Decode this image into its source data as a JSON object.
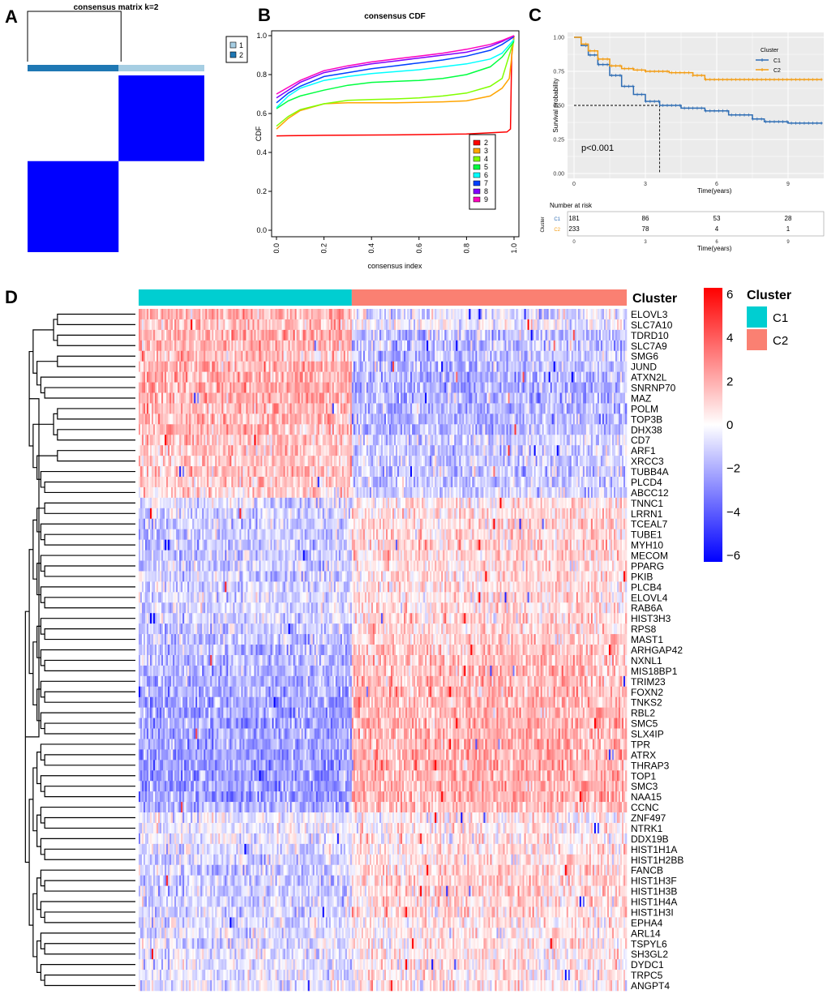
{
  "panel_letters": {
    "a": "A",
    "b": "B",
    "c": "C",
    "d": "D"
  },
  "chart_data": [
    {
      "panel": "A",
      "type": "heatmap",
      "title": "consensus matrix k=2",
      "legend": {
        "entries": [
          "1",
          "2"
        ],
        "colors": [
          "#a6cee3",
          "#1f78b4"
        ]
      },
      "cluster_fractions": [
        0.515,
        0.485
      ],
      "matrix": [
        [
          1,
          0
        ],
        [
          0,
          1
        ]
      ],
      "cell_color": "#0000ff",
      "background_color": "#ffffff"
    },
    {
      "panel": "B",
      "type": "line",
      "title": "consensus CDF",
      "xlabel": "consensus index",
      "ylabel": "CDF",
      "xlim": [
        0,
        1
      ],
      "ylim": [
        0,
        1
      ],
      "xticks": [
        "0.0",
        "0.2",
        "0.4",
        "0.6",
        "0.8",
        "1.0"
      ],
      "yticks": [
        "0.0",
        "0.2",
        "0.4",
        "0.6",
        "0.8",
        "1.0"
      ],
      "legend_position": "bottom-right",
      "series": [
        {
          "name": "2",
          "color": "#ff0000",
          "x": [
            0,
            0.05,
            0.2,
            0.5,
            0.8,
            0.97,
            0.985,
            0.99,
            1.0
          ],
          "y": [
            0.485,
            0.486,
            0.488,
            0.49,
            0.495,
            0.505,
            0.52,
            0.9,
            1.0
          ]
        },
        {
          "name": "3",
          "color": "#ffa500",
          "x": [
            0,
            0.05,
            0.1,
            0.2,
            0.3,
            0.5,
            0.7,
            0.8,
            0.9,
            0.95,
            0.98,
            1.0
          ],
          "y": [
            0.52,
            0.575,
            0.615,
            0.65,
            0.655,
            0.655,
            0.66,
            0.665,
            0.69,
            0.73,
            0.78,
            1.0
          ]
        },
        {
          "name": "4",
          "color": "#80ff00",
          "x": [
            0,
            0.05,
            0.1,
            0.2,
            0.3,
            0.4,
            0.5,
            0.6,
            0.7,
            0.8,
            0.9,
            0.95,
            1.0
          ],
          "y": [
            0.535,
            0.585,
            0.62,
            0.65,
            0.668,
            0.672,
            0.675,
            0.68,
            0.69,
            0.705,
            0.74,
            0.78,
            0.98
          ]
        },
        {
          "name": "5",
          "color": "#00ff40",
          "x": [
            0,
            0.05,
            0.1,
            0.2,
            0.3,
            0.4,
            0.5,
            0.6,
            0.7,
            0.8,
            0.9,
            0.95,
            1.0
          ],
          "y": [
            0.625,
            0.665,
            0.69,
            0.72,
            0.745,
            0.76,
            0.765,
            0.77,
            0.78,
            0.8,
            0.84,
            0.89,
            0.97
          ]
        },
        {
          "name": "6",
          "color": "#00ffff",
          "x": [
            0,
            0.05,
            0.1,
            0.2,
            0.3,
            0.4,
            0.5,
            0.6,
            0.7,
            0.8,
            0.9,
            0.95,
            1.0
          ],
          "y": [
            0.63,
            0.69,
            0.73,
            0.77,
            0.79,
            0.805,
            0.815,
            0.825,
            0.84,
            0.855,
            0.88,
            0.91,
            0.98
          ]
        },
        {
          "name": "7",
          "color": "#0040ff",
          "x": [
            0,
            0.05,
            0.1,
            0.2,
            0.3,
            0.4,
            0.5,
            0.6,
            0.7,
            0.8,
            0.9,
            0.95,
            1.0
          ],
          "y": [
            0.655,
            0.705,
            0.74,
            0.79,
            0.81,
            0.83,
            0.845,
            0.86,
            0.875,
            0.895,
            0.925,
            0.955,
            0.995
          ]
        },
        {
          "name": "8",
          "color": "#8000ff",
          "x": [
            0,
            0.05,
            0.1,
            0.2,
            0.3,
            0.4,
            0.5,
            0.6,
            0.7,
            0.8,
            0.9,
            0.95,
            1.0
          ],
          "y": [
            0.68,
            0.72,
            0.76,
            0.81,
            0.835,
            0.855,
            0.87,
            0.885,
            0.9,
            0.915,
            0.945,
            0.97,
            1.0
          ]
        },
        {
          "name": "9",
          "color": "#ff00bf",
          "x": [
            0,
            0.05,
            0.1,
            0.2,
            0.3,
            0.4,
            0.5,
            0.6,
            0.7,
            0.8,
            0.9,
            0.95,
            1.0
          ],
          "y": [
            0.7,
            0.735,
            0.77,
            0.82,
            0.845,
            0.865,
            0.88,
            0.895,
            0.91,
            0.93,
            0.955,
            0.975,
            1.0
          ]
        }
      ]
    },
    {
      "panel": "C",
      "type": "line",
      "title": "",
      "xlabel": "Time(years)",
      "ylabel": "Survival probability",
      "xlim": [
        0,
        10.5
      ],
      "ylim": [
        0,
        1
      ],
      "xticks": [
        0,
        3,
        6,
        9
      ],
      "yticks": [
        "0.00",
        "0.25",
        "0.50",
        "0.75",
        "1.00"
      ],
      "annotation": "p<0.001",
      "median_survival_time": 3.6,
      "legend": {
        "title": "Cluster",
        "position": "top-right"
      },
      "series": [
        {
          "name": "C1",
          "color": "#2e6db4",
          "x": [
            0,
            0.3,
            0.6,
            1,
            1.5,
            2,
            2.5,
            3,
            3.6,
            4.5,
            5.5,
            6.5,
            7.5,
            8,
            9,
            10.5
          ],
          "y": [
            1.0,
            0.94,
            0.87,
            0.8,
            0.72,
            0.64,
            0.58,
            0.53,
            0.5,
            0.48,
            0.46,
            0.43,
            0.4,
            0.38,
            0.37,
            0.37
          ]
        },
        {
          "name": "C2",
          "color": "#f39c12",
          "x": [
            0,
            0.3,
            0.6,
            1,
            1.5,
            2,
            2.5,
            3,
            4,
            5,
            5.5,
            7,
            9,
            10.5
          ],
          "y": [
            1.0,
            0.95,
            0.9,
            0.84,
            0.79,
            0.77,
            0.76,
            0.75,
            0.74,
            0.72,
            0.69,
            0.69,
            0.69,
            0.69
          ]
        }
      ],
      "risk_table": {
        "title": "Number at risk",
        "row_label": "Cluster",
        "xlabel": "Time(years)",
        "times": [
          0,
          3,
          6,
          9
        ],
        "rows": [
          {
            "name": "C1",
            "color": "#2e6db4",
            "values": [
              "181",
              "86",
              "53",
              "28"
            ]
          },
          {
            "name": "C2",
            "color": "#f39c12",
            "values": [
              "233",
              "78",
              "4",
              "1"
            ]
          }
        ]
      }
    },
    {
      "panel": "D",
      "type": "heatmap",
      "annotation_label": "Cluster",
      "annotation_legend": {
        "title": "Cluster",
        "entries": [
          {
            "name": "C1",
            "color": "#00ced1"
          },
          {
            "name": "C2",
            "color": "#fa8072"
          }
        ]
      },
      "color_scale": {
        "min": -6,
        "max": 6,
        "ticks": [
          "6",
          "4",
          "2",
          "0",
          "−2",
          "−4",
          "−6"
        ]
      },
      "group_fraction_c1": 0.435,
      "n_columns": 414,
      "genes": [
        "ELOVL3",
        "SLC7A10",
        "TDRD10",
        "SLC7A9",
        "SMG6",
        "JUND",
        "ATXN2L",
        "SNRNP70",
        "MAZ",
        "POLM",
        "TOP3B",
        "DHX38",
        "CD7",
        "ARF1",
        "XRCC3",
        "TUBB4A",
        "PLCD4",
        "ABCC12",
        "TNNC1",
        "LRRN1",
        "TCEAL7",
        "TUBE1",
        "MYH10",
        "MECOM",
        "PPARG",
        "PKIB",
        "PLCB4",
        "ELOVL4",
        "RAB6A",
        "HIST3H3",
        "RPS8",
        "MAST1",
        "ARHGAP42",
        "NXNL1",
        "MIS18BP1",
        "TRIM23",
        "FOXN2",
        "TNKS2",
        "RBL2",
        "SMC5",
        "SLX4IP",
        "TPR",
        "ATRX",
        "THRAP3",
        "TOP1",
        "SMC3",
        "NAA15",
        "CCNC",
        "ZNF497",
        "NTRK1",
        "DDX19B",
        "HIST1H1A",
        "HIST1H2BB",
        "FANCB",
        "HIST1H3F",
        "HIST1H3B",
        "HIST1H4A",
        "HIST1H3I",
        "EPHA4",
        "ARL14",
        "TSPYL6",
        "SH3GL2",
        "DYDC1",
        "TRPC5",
        "ANGPT4"
      ],
      "mean_c1": [
        1.2,
        1.0,
        1.3,
        1.2,
        1.0,
        1.2,
        1.3,
        1.4,
        1.3,
        1.2,
        1.2,
        1.2,
        0.9,
        0.9,
        0.9,
        1.0,
        0.9,
        0.7,
        -0.5,
        -0.7,
        -0.8,
        -0.8,
        -0.9,
        -0.8,
        -0.7,
        -0.7,
        -0.7,
        -0.6,
        -0.6,
        -0.7,
        -0.8,
        -0.9,
        -1.0,
        -1.1,
        -1.2,
        -1.3,
        -1.3,
        -1.4,
        -1.4,
        -1.4,
        -1.4,
        -1.5,
        -1.6,
        -1.6,
        -1.6,
        -1.5,
        -1.5,
        -1.2,
        -0.3,
        -0.3,
        -0.3,
        -0.5,
        -0.6,
        -0.7,
        -0.8,
        -0.8,
        -0.7,
        -0.7,
        -0.5,
        -0.4,
        -0.4,
        -0.4,
        -0.4,
        -0.4,
        -0.4
      ],
      "mean_c2": [
        -0.4,
        -0.3,
        -0.9,
        -0.9,
        -1.0,
        -1.0,
        -1.2,
        -1.3,
        -1.2,
        -1.1,
        -1.1,
        -1.1,
        -0.7,
        -0.8,
        -0.8,
        -0.9,
        -0.8,
        -0.6,
        0.4,
        0.5,
        0.6,
        0.6,
        0.7,
        0.7,
        0.6,
        0.5,
        0.5,
        0.5,
        0.5,
        0.6,
        0.7,
        0.8,
        0.9,
        1.0,
        1.1,
        1.1,
        1.1,
        1.2,
        1.2,
        1.2,
        1.2,
        1.3,
        1.3,
        1.3,
        1.3,
        1.3,
        1.2,
        1.0,
        0.2,
        0.3,
        0.3,
        0.5,
        0.5,
        0.6,
        0.7,
        0.7,
        0.6,
        0.6,
        0.4,
        0.3,
        0.3,
        0.3,
        0.3,
        0.3,
        0.3
      ]
    }
  ]
}
